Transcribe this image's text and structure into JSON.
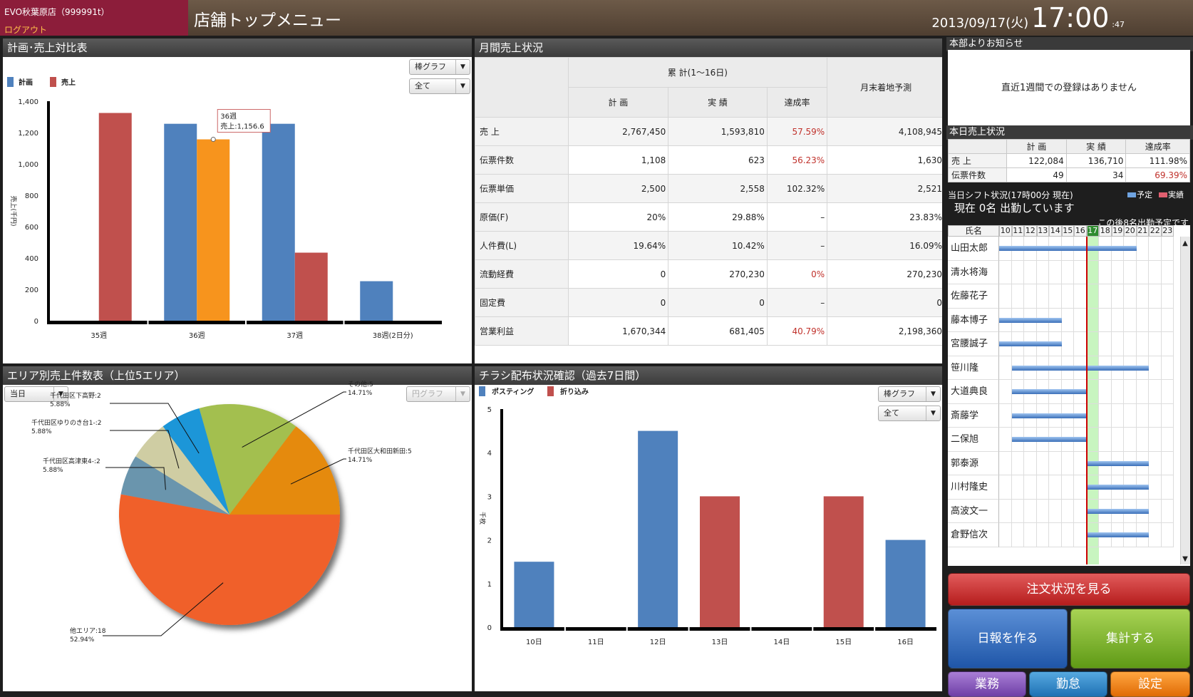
{
  "header": {
    "store_name": "EVO秋葉原店（999991t）",
    "logout": "ログアウト",
    "page_title": "店舗トップメニュー",
    "date": "2013/09/17(火)",
    "time": "17:00",
    "seconds": ":47"
  },
  "plan_sales": {
    "title": "計画･売上対比表",
    "chart_type_select": "棒グラフ",
    "filter_select": "全て",
    "legend": [
      "計画",
      "売上"
    ],
    "tooltip_line1": "36週",
    "tooltip_line2": "売上:1,156.6",
    "chart_data": {
      "type": "bar",
      "title": "",
      "ylabel": "売上(千円)",
      "ylim": [
        0,
        1400
      ],
      "yticks": [
        "0",
        "200",
        "400",
        "600",
        "800",
        "1,000",
        "1,200",
        "1,400"
      ],
      "categories": [
        "35週",
        "36週",
        "37週",
        "38週(2日分)"
      ],
      "series": [
        {
          "name": "計画",
          "color": "#4f81bd",
          "values": [
            null,
            1256,
            1256,
            252
          ]
        },
        {
          "name": "売上",
          "color": "#c0504d",
          "values": [
            1325,
            1156.6,
            434,
            null
          ]
        }
      ],
      "highlight_color": "#f7941d"
    }
  },
  "monthly": {
    "title": "月間売上状況",
    "group_header": "累 計(1〜16日)",
    "col_plan": "計 画",
    "col_actual": "実 績",
    "col_rate": "達成率",
    "col_forecast": "月末着地予測",
    "rows": [
      {
        "label": "売 上",
        "plan": "2,767,450",
        "actual": "1,593,810",
        "rate": "57.59%",
        "rate_red": true,
        "forecast": "4,108,945"
      },
      {
        "label": "伝票件数",
        "plan": "1,108",
        "actual": "623",
        "rate": "56.23%",
        "rate_red": true,
        "forecast": "1,630"
      },
      {
        "label": "伝票単価",
        "plan": "2,500",
        "actual": "2,558",
        "rate": "102.32%",
        "rate_red": false,
        "forecast": "2,521"
      },
      {
        "label": "原価(F)",
        "plan": "20%",
        "actual": "29.88%",
        "rate": "–",
        "rate_red": false,
        "forecast": "23.83%"
      },
      {
        "label": "人件費(L)",
        "plan": "19.64%",
        "actual": "10.42%",
        "rate": "–",
        "rate_red": false,
        "forecast": "16.09%"
      },
      {
        "label": "流動経費",
        "plan": "0",
        "actual": "270,230",
        "rate": "0%",
        "rate_red": true,
        "forecast": "270,230"
      },
      {
        "label": "固定費",
        "plan": "0",
        "actual": "0",
        "rate": "–",
        "rate_red": false,
        "forecast": "0"
      },
      {
        "label": "営業利益",
        "plan": "1,670,344",
        "actual": "681,405",
        "rate": "40.79%",
        "rate_red": true,
        "forecast": "2,198,360"
      }
    ]
  },
  "area": {
    "title": "エリア別売上件数表（上位5エリア）",
    "period_select": "当日",
    "chart_type_select": "円グラフ",
    "chart_data": {
      "type": "pie",
      "slices": [
        {
          "name": "他エリア:18",
          "pct": "52.94%",
          "value": 18,
          "color": "#f0612a"
        },
        {
          "name": "千代田区高津東4-:2",
          "pct": "5.88%",
          "value": 2,
          "color": "#6a95ad"
        },
        {
          "name": "千代田区ゆりのき台1-:2",
          "pct": "5.88%",
          "value": 2,
          "color": "#cfcda3"
        },
        {
          "name": "千代田区下高野:2",
          "pct": "5.88%",
          "value": 2,
          "color": "#1c96d8"
        },
        {
          "name": "その他:5",
          "pct": "14.71%",
          "value": 5,
          "color": "#a3bf4f"
        },
        {
          "name": "千代田区大和田新田:5",
          "pct": "14.71%",
          "value": 5,
          "color": "#e58a0d"
        }
      ]
    }
  },
  "flyer": {
    "title": "チラシ配布状況確認（過去7日間）",
    "chart_type_select": "棒グラフ",
    "filter_select": "全て",
    "legend": [
      "ポスティング",
      "折り込み"
    ],
    "chart_data": {
      "type": "bar",
      "title": "",
      "ylabel": "千枚",
      "ylim": [
        0,
        5
      ],
      "yticks": [
        "0",
        "1",
        "2",
        "3",
        "4",
        "5"
      ],
      "categories": [
        "10日",
        "11日",
        "12日",
        "13日",
        "14日",
        "15日",
        "16日"
      ],
      "series": [
        {
          "name": "ポスティング",
          "color": "#4f81bd",
          "values": [
            1.5,
            0,
            4.5,
            0,
            0,
            0,
            2
          ]
        },
        {
          "name": "折り込み",
          "color": "#c0504d",
          "values": [
            0,
            0,
            0,
            3,
            0,
            3,
            0
          ]
        }
      ]
    }
  },
  "notice": {
    "title": "本部よりお知らせ",
    "message": "直近1週間での登録はありません"
  },
  "today_sales": {
    "title": "本日売上状況",
    "cols": [
      "計 画",
      "実 績",
      "達成率"
    ],
    "rows": [
      {
        "label": "売 上",
        "plan": "122,084",
        "actual": "136,710",
        "rate": "111.98%",
        "rate_red": false
      },
      {
        "label": "伝票件数",
        "plan": "49",
        "actual": "34",
        "rate": "69.39%",
        "rate_red": true
      }
    ]
  },
  "shift": {
    "title": "当日シフト状況(17時00分 現在)",
    "legend_plan": "予定",
    "legend_actual": "実績",
    "now_text": "現在 0名 出勤しています",
    "later_text": "この後8名出勤予定です",
    "name_header": "氏名",
    "hours": [
      "10",
      "11",
      "12",
      "13",
      "14",
      "15",
      "16",
      "17",
      "18",
      "19",
      "20",
      "21",
      "22",
      "23"
    ],
    "current_hour": "17",
    "staff": [
      {
        "name": "山田太郎",
        "start": 10,
        "end": 21
      },
      {
        "name": "清水将海",
        "start": null,
        "end": null
      },
      {
        "name": "佐藤花子",
        "start": null,
        "end": null
      },
      {
        "name": "藤本博子",
        "start": 10,
        "end": 15
      },
      {
        "name": "宮腰誠子",
        "start": 10,
        "end": 15
      },
      {
        "name": "笹川隆",
        "start": 11,
        "end": 22
      },
      {
        "name": "大道典良",
        "start": 11,
        "end": 17
      },
      {
        "name": "斎藤学",
        "start": 11,
        "end": 17
      },
      {
        "name": "二保旭",
        "start": 11,
        "end": 17
      },
      {
        "name": "郭泰源",
        "start": 17,
        "end": 22
      },
      {
        "name": "川村隆史",
        "start": 17,
        "end": 22
      },
      {
        "name": "高波文一",
        "start": 17,
        "end": 22
      },
      {
        "name": "倉野信次",
        "start": 17,
        "end": 22
      }
    ]
  },
  "buttons": {
    "order": "注文状況を見る",
    "report": "日報を作る",
    "total": "集計する",
    "work": "業務",
    "attend": "勤怠",
    "setting": "設定"
  },
  "colors": {
    "header_store_bg": "#8c1d3a",
    "header_bar_bg": "#5d4b3c",
    "shift_plan_bar": "#4f81bd",
    "shift_current_hour": "#2e8b2e"
  }
}
